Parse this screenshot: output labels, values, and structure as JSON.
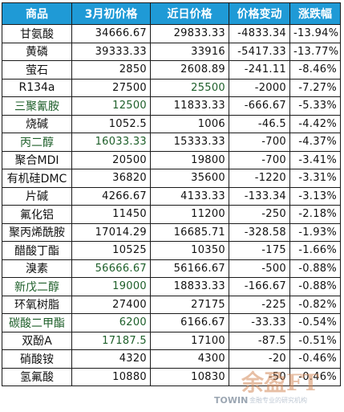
{
  "table": {
    "headers": [
      "商品",
      "3月初价格",
      "近日价格",
      "价格变动",
      "涨跌幅"
    ],
    "rows": [
      {
        "name": "甘氨酸",
        "start": "34666.67",
        "recent": "29833.33",
        "change": "-4833.34",
        "pct": "-13.94%"
      },
      {
        "name": "黄磷",
        "start": "39333.33",
        "recent": "33916",
        "change": "-5417.33",
        "pct": "-13.77%"
      },
      {
        "name": "萤石",
        "start": "2850",
        "recent": "2608.89",
        "change": "-241.11",
        "pct": "-8.46%"
      },
      {
        "name": "R134a",
        "start": "27500",
        "recent": "25500",
        "change": "-2000",
        "pct": "-7.27%"
      },
      {
        "name": "三聚氰胺",
        "start": "12500",
        "recent": "11833.33",
        "change": "-666.67",
        "pct": "-5.33%"
      },
      {
        "name": "烧碱",
        "start": "1052.5",
        "recent": "1006",
        "change": "-46.5",
        "pct": "-4.42%"
      },
      {
        "name": "丙二醇",
        "start": "16033.33",
        "recent": "15333.33",
        "change": "-700",
        "pct": "-4.37%"
      },
      {
        "name": "聚合MDI",
        "start": "20500",
        "recent": "19800",
        "change": "-700",
        "pct": "-3.41%"
      },
      {
        "name": "有机硅DMC",
        "start": "36820",
        "recent": "35600",
        "change": "-1220",
        "pct": "-3.31%"
      },
      {
        "name": "片碱",
        "start": "4266.67",
        "recent": "4133.33",
        "change": "-133.34",
        "pct": "-3.13%"
      },
      {
        "name": "氟化铝",
        "start": "11450",
        "recent": "11200",
        "change": "-250",
        "pct": "-2.18%"
      },
      {
        "name": "聚丙烯酰胺",
        "start": "17014.29",
        "recent": "16685.71",
        "change": "-328.58",
        "pct": "-1.93%"
      },
      {
        "name": "醋酸丁酯",
        "start": "10525",
        "recent": "10350",
        "change": "-175",
        "pct": "-1.66%"
      },
      {
        "name": "溴素",
        "start": "56666.67",
        "recent": "56166.67",
        "change": "-500",
        "pct": "-0.88%"
      },
      {
        "name": "新戊二醇",
        "start": "19000",
        "recent": "18833.33",
        "change": "-166.67",
        "pct": "-0.88%"
      },
      {
        "name": "环氧树脂",
        "start": "27400",
        "recent": "27175",
        "change": "-225",
        "pct": "-0.82%"
      },
      {
        "name": "碳酸二甲酯",
        "start": "6200",
        "recent": "6166.67",
        "change": "-33.33",
        "pct": "-0.54%"
      },
      {
        "name": "双酚A",
        "start": "17187.5",
        "recent": "17100",
        "change": "-87.5",
        "pct": "-0.51%"
      },
      {
        "name": "硝酸铵",
        "start": "4320",
        "recent": "4300",
        "change": "-20",
        "pct": "-0.46%"
      },
      {
        "name": "氢氟酸",
        "start": "10880",
        "recent": "10830",
        "change": "-50",
        "pct": "-0.46%"
      }
    ]
  },
  "watermark": {
    "logo_text": "余盈FT",
    "brand": "TOWIN",
    "tagline": "金融专业的研究机构"
  },
  "colors": {
    "header_bg": "#1f9ad6",
    "header_text": "#ffffff",
    "highlight_text": "#1e5f2a"
  }
}
